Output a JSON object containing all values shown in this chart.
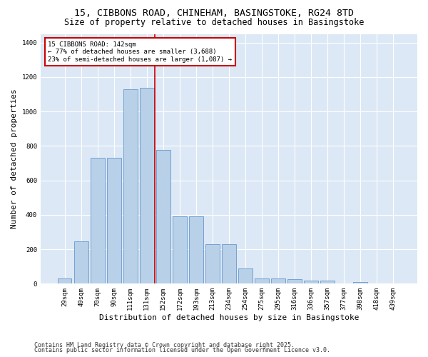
{
  "title_line1": "15, CIBBONS ROAD, CHINEHAM, BASINGSTOKE, RG24 8TD",
  "title_line2": "Size of property relative to detached houses in Basingstoke",
  "xlabel": "Distribution of detached houses by size in Basingstoke",
  "ylabel": "Number of detached properties",
  "categories": [
    "29sqm",
    "49sqm",
    "70sqm",
    "90sqm",
    "111sqm",
    "131sqm",
    "152sqm",
    "172sqm",
    "193sqm",
    "213sqm",
    "234sqm",
    "254sqm",
    "275sqm",
    "295sqm",
    "316sqm",
    "336sqm",
    "357sqm",
    "377sqm",
    "398sqm",
    "418sqm",
    "439sqm"
  ],
  "values": [
    30,
    245,
    730,
    730,
    1130,
    1135,
    775,
    390,
    390,
    230,
    230,
    90,
    30,
    30,
    25,
    20,
    20,
    0,
    10,
    0,
    0
  ],
  "bar_color": "#b8d0e8",
  "bar_edge_color": "#6699cc",
  "vline_color": "#cc0000",
  "vline_pos": 5.5,
  "annotation_text": "15 CIBBONS ROAD: 142sqm\n← 77% of detached houses are smaller (3,688)\n23% of semi-detached houses are larger (1,087) →",
  "annotation_box_color": "#ffffff",
  "annotation_box_edge": "#cc0000",
  "footer_line1": "Contains HM Land Registry data © Crown copyright and database right 2025.",
  "footer_line2": "Contains public sector information licensed under the Open Government Licence v3.0.",
  "ylim": [
    0,
    1450
  ],
  "fig_bg_color": "#ffffff",
  "plot_bg_color": "#dce8f5",
  "title_fontsize": 9.5,
  "subtitle_fontsize": 8.5,
  "tick_fontsize": 6.5,
  "ylabel_fontsize": 8,
  "xlabel_fontsize": 8,
  "footer_fontsize": 6,
  "annotation_fontsize": 6.5
}
